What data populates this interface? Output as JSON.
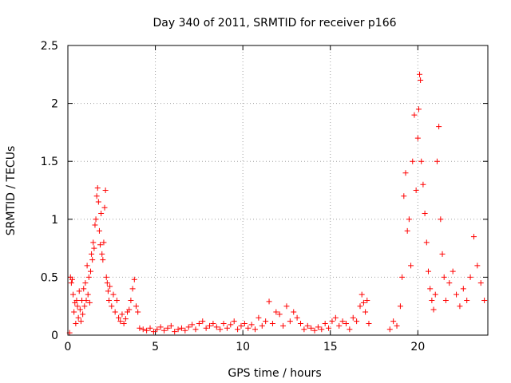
{
  "chart_data": {
    "type": "scatter",
    "title": "Day 340 of 2011, SRMTID for receiver p166",
    "xlabel": "GPS time / hours",
    "ylabel": "SRMTID / TECUs",
    "xlim": [
      0,
      24
    ],
    "ylim": [
      0,
      2.5
    ],
    "x_ticks": [
      0,
      5,
      10,
      15,
      20
    ],
    "x_tick_labels": [
      "0",
      "5",
      "10",
      "15",
      "20"
    ],
    "y_ticks": [
      0,
      0.5,
      1,
      1.5,
      2,
      2.5
    ],
    "y_tick_labels": [
      "0",
      "0.5",
      "1",
      "1.5",
      "2",
      "2.5"
    ],
    "grid": true,
    "marker": "plus",
    "series_color": "#ff0000",
    "series": [
      {
        "name": "SRMTID",
        "points": [
          [
            0.1,
            0.02
          ],
          [
            0.15,
            0.5
          ],
          [
            0.2,
            0.45
          ],
          [
            0.25,
            0.48
          ],
          [
            0.3,
            0.35
          ],
          [
            0.35,
            0.2
          ],
          [
            0.4,
            0.28
          ],
          [
            0.45,
            0.1
          ],
          [
            0.5,
            0.3
          ],
          [
            0.55,
            0.25
          ],
          [
            0.6,
            0.15
          ],
          [
            0.65,
            0.38
          ],
          [
            0.7,
            0.22
          ],
          [
            0.75,
            0.12
          ],
          [
            0.8,
            0.3
          ],
          [
            0.85,
            0.18
          ],
          [
            0.9,
            0.4
          ],
          [
            0.95,
            0.25
          ],
          [
            1.0,
            0.45
          ],
          [
            1.05,
            0.3
          ],
          [
            1.1,
            0.6
          ],
          [
            1.15,
            0.35
          ],
          [
            1.2,
            0.5
          ],
          [
            1.25,
            0.28
          ],
          [
            1.3,
            0.55
          ],
          [
            1.35,
            0.7
          ],
          [
            1.4,
            0.65
          ],
          [
            1.45,
            0.8
          ],
          [
            1.5,
            0.75
          ],
          [
            1.55,
            0.95
          ],
          [
            1.6,
            1.0
          ],
          [
            1.65,
            1.2
          ],
          [
            1.7,
            1.27
          ],
          [
            1.75,
            1.15
          ],
          [
            1.8,
            0.9
          ],
          [
            1.85,
            0.78
          ],
          [
            1.9,
            1.05
          ],
          [
            1.95,
            0.7
          ],
          [
            2.0,
            0.65
          ],
          [
            2.05,
            0.8
          ],
          [
            2.1,
            1.1
          ],
          [
            2.15,
            1.25
          ],
          [
            2.2,
            0.5
          ],
          [
            2.25,
            0.45
          ],
          [
            2.3,
            0.38
          ],
          [
            2.35,
            0.3
          ],
          [
            2.4,
            0.42
          ],
          [
            2.5,
            0.25
          ],
          [
            2.6,
            0.35
          ],
          [
            2.7,
            0.2
          ],
          [
            2.8,
            0.3
          ],
          [
            2.9,
            0.15
          ],
          [
            3.0,
            0.12
          ],
          [
            3.1,
            0.18
          ],
          [
            3.2,
            0.1
          ],
          [
            3.3,
            0.14
          ],
          [
            3.4,
            0.2
          ],
          [
            3.5,
            0.22
          ],
          [
            3.6,
            0.3
          ],
          [
            3.7,
            0.4
          ],
          [
            3.8,
            0.48
          ],
          [
            3.9,
            0.25
          ],
          [
            4.0,
            0.2
          ],
          [
            4.1,
            0.06
          ],
          [
            4.3,
            0.05
          ],
          [
            4.5,
            0.04
          ],
          [
            4.7,
            0.06
          ],
          [
            4.9,
            0.03
          ],
          [
            5.1,
            0.05
          ],
          [
            5.3,
            0.07
          ],
          [
            5.5,
            0.04
          ],
          [
            5.7,
            0.06
          ],
          [
            5.9,
            0.08
          ],
          [
            6.1,
            0.03
          ],
          [
            6.3,
            0.05
          ],
          [
            6.5,
            0.06
          ],
          [
            6.7,
            0.04
          ],
          [
            6.9,
            0.07
          ],
          [
            7.1,
            0.09
          ],
          [
            7.3,
            0.05
          ],
          [
            7.5,
            0.1
          ],
          [
            7.7,
            0.12
          ],
          [
            7.9,
            0.06
          ],
          [
            8.1,
            0.08
          ],
          [
            8.3,
            0.1
          ],
          [
            8.5,
            0.07
          ],
          [
            8.7,
            0.05
          ],
          [
            8.9,
            0.1
          ],
          [
            9.1,
            0.06
          ],
          [
            9.3,
            0.09
          ],
          [
            9.5,
            0.12
          ],
          [
            9.7,
            0.05
          ],
          [
            9.9,
            0.08
          ],
          [
            10.1,
            0.1
          ],
          [
            10.3,
            0.06
          ],
          [
            10.5,
            0.09
          ],
          [
            10.7,
            0.05
          ],
          [
            10.9,
            0.15
          ],
          [
            11.1,
            0.08
          ],
          [
            11.3,
            0.12
          ],
          [
            11.5,
            0.29
          ],
          [
            11.7,
            0.1
          ],
          [
            11.9,
            0.2
          ],
          [
            12.1,
            0.18
          ],
          [
            12.3,
            0.08
          ],
          [
            12.5,
            0.25
          ],
          [
            12.7,
            0.12
          ],
          [
            12.9,
            0.2
          ],
          [
            13.1,
            0.15
          ],
          [
            13.3,
            0.1
          ],
          [
            13.5,
            0.05
          ],
          [
            13.7,
            0.08
          ],
          [
            13.9,
            0.06
          ],
          [
            14.1,
            0.04
          ],
          [
            14.3,
            0.07
          ],
          [
            14.5,
            0.05
          ],
          [
            14.7,
            0.1
          ],
          [
            14.9,
            0.06
          ],
          [
            15.1,
            0.12
          ],
          [
            15.3,
            0.15
          ],
          [
            15.5,
            0.08
          ],
          [
            15.7,
            0.12
          ],
          [
            15.9,
            0.1
          ],
          [
            16.1,
            0.05
          ],
          [
            16.3,
            0.15
          ],
          [
            16.5,
            0.12
          ],
          [
            16.7,
            0.25
          ],
          [
            16.8,
            0.35
          ],
          [
            16.9,
            0.28
          ],
          [
            17.0,
            0.2
          ],
          [
            17.1,
            0.3
          ],
          [
            17.2,
            0.1
          ],
          [
            18.4,
            0.05
          ],
          [
            18.6,
            0.12
          ],
          [
            18.8,
            0.08
          ],
          [
            19.0,
            0.25
          ],
          [
            19.1,
            0.5
          ],
          [
            19.2,
            1.2
          ],
          [
            19.3,
            1.4
          ],
          [
            19.4,
            0.9
          ],
          [
            19.5,
            1.0
          ],
          [
            19.6,
            0.6
          ],
          [
            19.7,
            1.5
          ],
          [
            19.8,
            1.9
          ],
          [
            19.9,
            1.25
          ],
          [
            20.0,
            1.7
          ],
          [
            20.05,
            1.95
          ],
          [
            20.1,
            2.25
          ],
          [
            20.15,
            2.2
          ],
          [
            20.2,
            1.5
          ],
          [
            20.3,
            1.3
          ],
          [
            20.4,
            1.05
          ],
          [
            20.5,
            0.8
          ],
          [
            20.6,
            0.55
          ],
          [
            20.7,
            0.4
          ],
          [
            20.8,
            0.3
          ],
          [
            20.9,
            0.22
          ],
          [
            21.0,
            0.35
          ],
          [
            21.1,
            1.5
          ],
          [
            21.2,
            1.8
          ],
          [
            21.3,
            1.0
          ],
          [
            21.4,
            0.7
          ],
          [
            21.5,
            0.5
          ],
          [
            21.6,
            0.3
          ],
          [
            21.8,
            0.45
          ],
          [
            22.0,
            0.55
          ],
          [
            22.2,
            0.35
          ],
          [
            22.4,
            0.25
          ],
          [
            22.6,
            0.4
          ],
          [
            22.8,
            0.3
          ],
          [
            23.0,
            0.5
          ],
          [
            23.2,
            0.85
          ],
          [
            23.4,
            0.6
          ],
          [
            23.6,
            0.45
          ],
          [
            23.8,
            0.3
          ]
        ]
      }
    ]
  }
}
